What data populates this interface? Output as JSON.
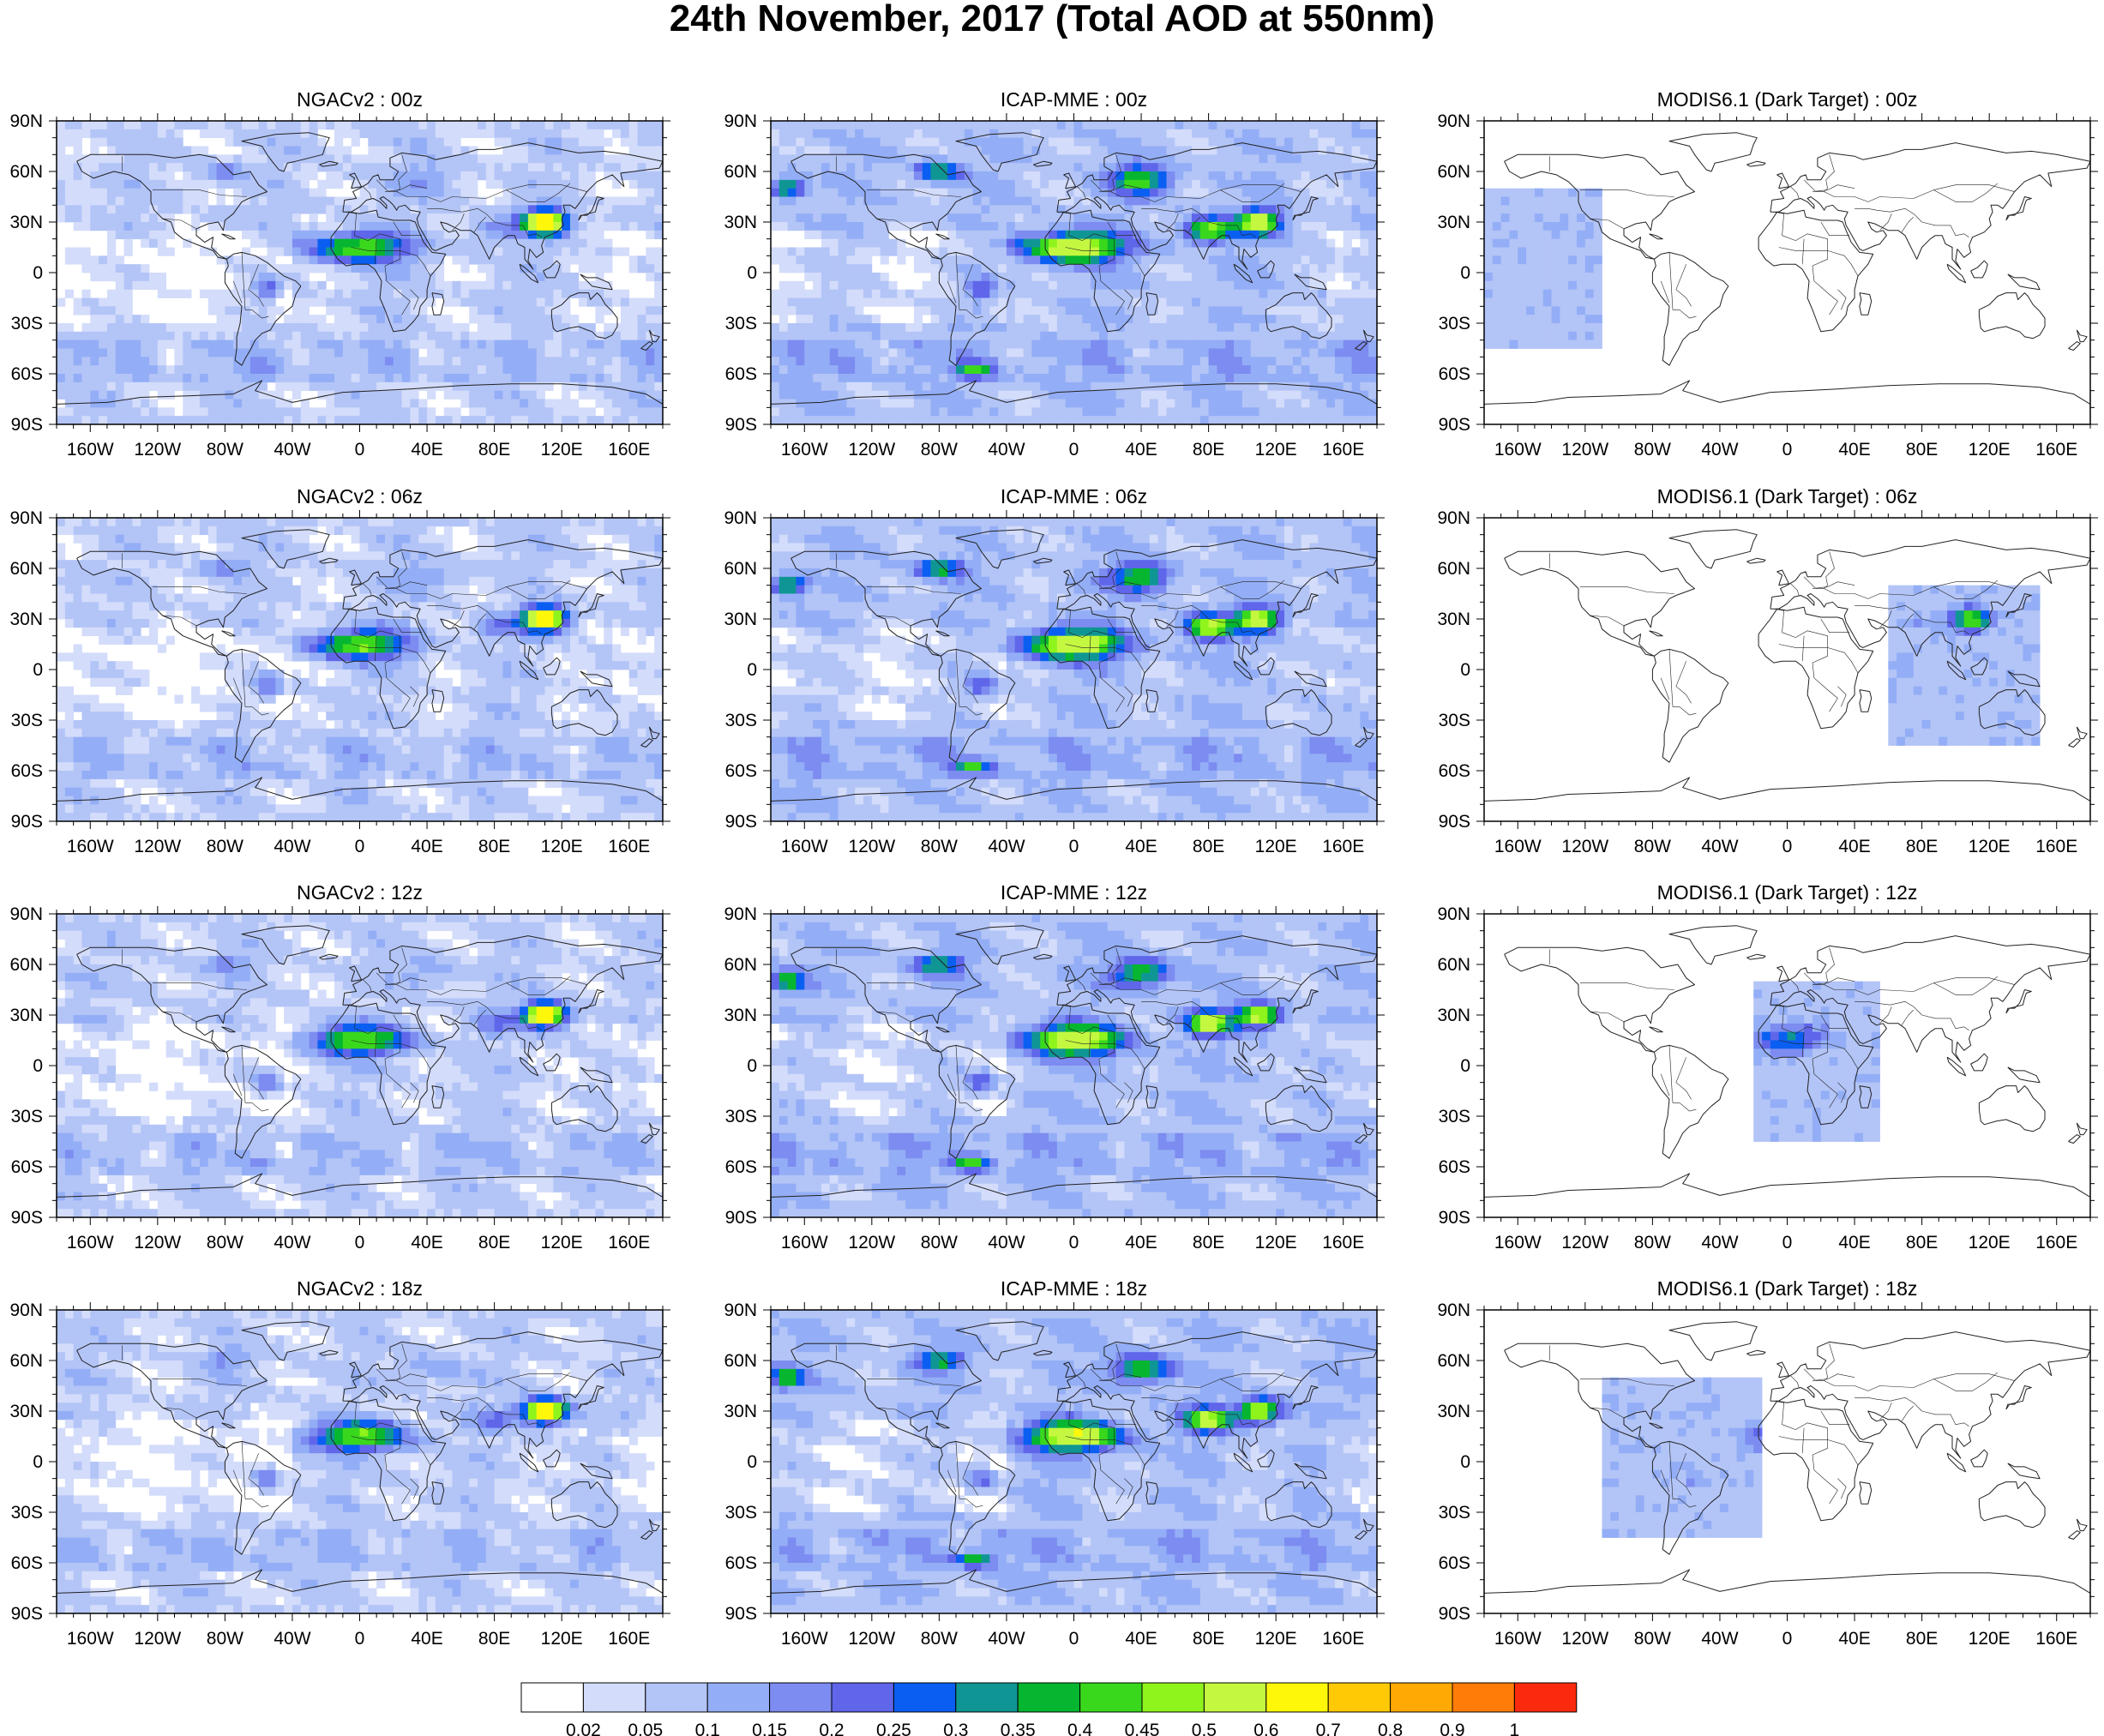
{
  "title": "24th November, 2017 (Total AOD at 550nm)",
  "lon_ticks": [
    "160W",
    "120W",
    "80W",
    "40W",
    "0",
    "40E",
    "80E",
    "120E",
    "160E"
  ],
  "lat_ticks": [
    "90N",
    "60N",
    "30N",
    "0",
    "30S",
    "60S",
    "90S"
  ],
  "panels": [
    {
      "title": "NGACv2 : 00z",
      "model": "NGACv2",
      "time": "00z",
      "coverage": "global"
    },
    {
      "title": "ICAP-MME : 00z",
      "model": "ICAP-MME",
      "time": "00z",
      "coverage": "global"
    },
    {
      "title": "MODIS6.1 (Dark Target) : 00z",
      "model": "MODIS6.1 (Dark Target)",
      "time": "00z",
      "coverage": "swath",
      "swath_lon": [
        -180,
        -110
      ]
    },
    {
      "title": "NGACv2 : 06z",
      "model": "NGACv2",
      "time": "06z",
      "coverage": "global"
    },
    {
      "title": "ICAP-MME : 06z",
      "model": "ICAP-MME",
      "time": "06z",
      "coverage": "global"
    },
    {
      "title": "MODIS6.1 (Dark Target) : 06z",
      "model": "MODIS6.1 (Dark Target)",
      "time": "06z",
      "coverage": "swath",
      "swath_lon": [
        60,
        150
      ]
    },
    {
      "title": "NGACv2 : 12z",
      "model": "NGACv2",
      "time": "12z",
      "coverage": "global"
    },
    {
      "title": "ICAP-MME : 12z",
      "model": "ICAP-MME",
      "time": "12z",
      "coverage": "global"
    },
    {
      "title": "MODIS6.1 (Dark Target) : 12z",
      "model": "MODIS6.1 (Dark Target)",
      "time": "12z",
      "coverage": "swath",
      "swath_lon": [
        -20,
        55
      ]
    },
    {
      "title": "NGACv2 : 18z",
      "model": "NGACv2",
      "time": "18z",
      "coverage": "global"
    },
    {
      "title": "ICAP-MME : 18z",
      "model": "ICAP-MME",
      "time": "18z",
      "coverage": "global"
    },
    {
      "title": "MODIS6.1 (Dark Target) : 18z",
      "model": "MODIS6.1 (Dark Target)",
      "time": "18z",
      "coverage": "swath",
      "swath_lon": [
        -110,
        -15
      ]
    }
  ],
  "colorbar": {
    "labels": [
      "0.02",
      "0.05",
      "0.1",
      "0.15",
      "0.2",
      "0.25",
      "0.3",
      "0.35",
      "0.4",
      "0.45",
      "0.5",
      "0.6",
      "0.7",
      "0.8",
      "0.9",
      "1"
    ],
    "colors": [
      "#ffffff",
      "#d3dcfa",
      "#b3c4f7",
      "#93aef6",
      "#7d8cf0",
      "#5f66ea",
      "#0a5ff2",
      "#0f9694",
      "#07b630",
      "#39d81d",
      "#8ff41c",
      "#c4f840",
      "#fff709",
      "#ffc906",
      "#ffa904",
      "#ff7c08",
      "#fc2a0c"
    ]
  }
}
